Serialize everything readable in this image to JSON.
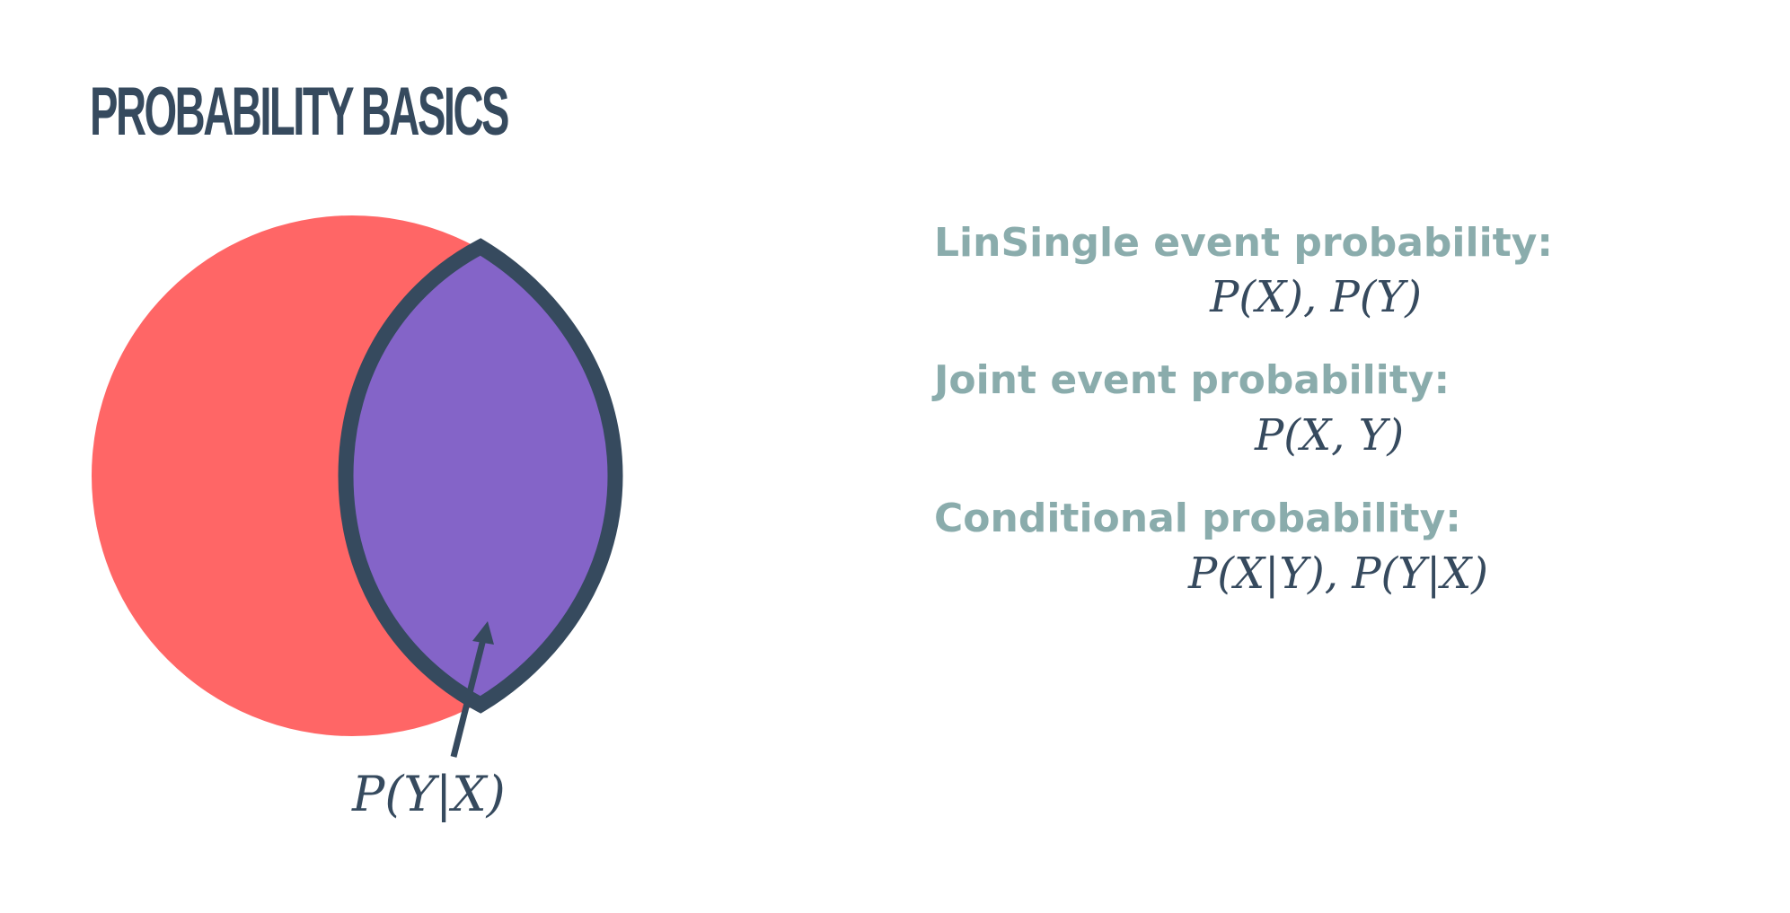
{
  "title": "PROBABILITY BASICS",
  "diagram": {
    "colors": {
      "circle_x": "#ff6666",
      "intersection": "#8464c8",
      "outline": "#364a5e",
      "background": "#ffffff"
    },
    "arrow_label": "P(Y|X)"
  },
  "definitions": [
    {
      "heading": "LinSingle event probability:",
      "formula": "P(X), P(Y)"
    },
    {
      "heading": "Joint event probability:",
      "formula": "P(X, Y)"
    },
    {
      "heading": "Conditional probability:",
      "formula": "P(X|Y), P(Y|X)"
    }
  ]
}
